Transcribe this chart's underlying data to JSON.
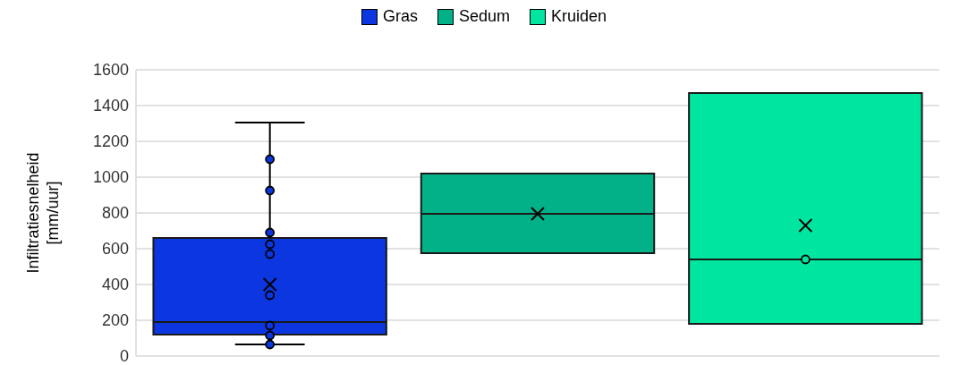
{
  "chart_data": {
    "type": "box",
    "ylabel": "Infiltratiesnelheid [mm/uur]",
    "categories": [
      null
    ],
    "ylim": [
      0,
      1600
    ],
    "yticks": [
      0,
      200,
      400,
      600,
      800,
      1000,
      1200,
      1400,
      1600
    ],
    "grid": "y",
    "legend": "top",
    "series": [
      {
        "name": "Gras",
        "color": "#0b36e0",
        "boxes": [
          {
            "low": 65,
            "q1": 120,
            "median": 190,
            "q3": 660,
            "high": 1305,
            "mean": 400,
            "outliers": [
              1100,
              925,
              690,
              625,
              570,
              340,
              170,
              115,
              65
            ]
          }
        ]
      },
      {
        "name": "Sedum",
        "color": "#03b189",
        "boxes": [
          {
            "low": 575,
            "q1": 575,
            "median": 795,
            "q3": 1020,
            "high": 1020,
            "mean": 795
          }
        ]
      },
      {
        "name": "Kruiden",
        "color": "#00e6a0",
        "boxes": [
          {
            "low": 180,
            "q1": 180,
            "median": 540,
            "q3": 1470,
            "high": 1470,
            "mean": 730,
            "outliers": [
              540
            ]
          }
        ]
      }
    ]
  }
}
